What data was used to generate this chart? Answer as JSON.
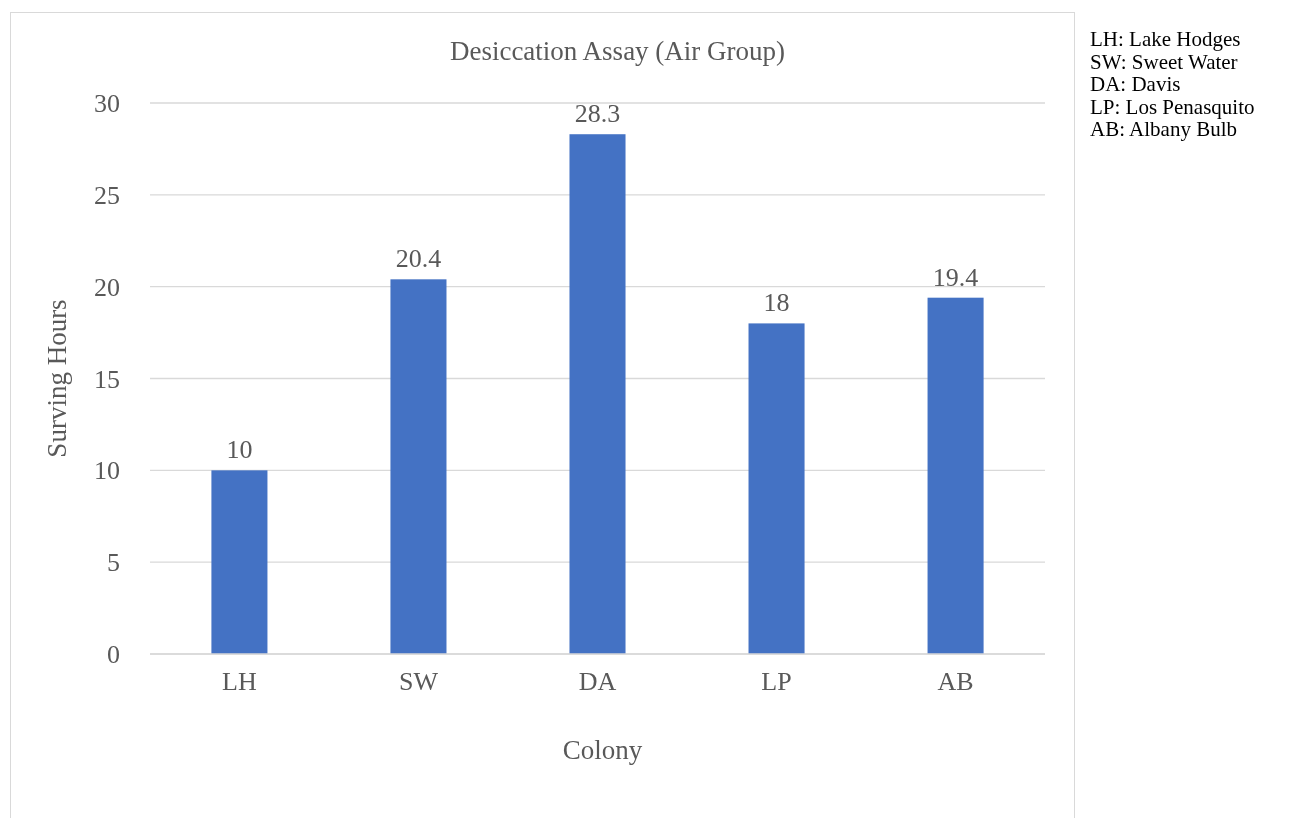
{
  "chart_data": {
    "type": "bar",
    "title": "Desiccation Assay (Air Group)",
    "xlabel": "Colony",
    "ylabel": "Surving Hours",
    "categories": [
      "LH",
      "SW",
      "DA",
      "LP",
      "AB"
    ],
    "values": [
      10,
      20.4,
      28.3,
      18,
      19.4
    ],
    "color": "#4472c4",
    "ylim": [
      0,
      30
    ],
    "yticks": [
      0,
      5,
      10,
      15,
      20,
      25,
      30
    ],
    "grid": "y",
    "data_labels": true,
    "annotations": [
      "LH: Lake Hodges",
      "SW: Sweet Water",
      "DA: Davis",
      "LP: Los Penasquito",
      "AB: Albany Bulb"
    ]
  }
}
